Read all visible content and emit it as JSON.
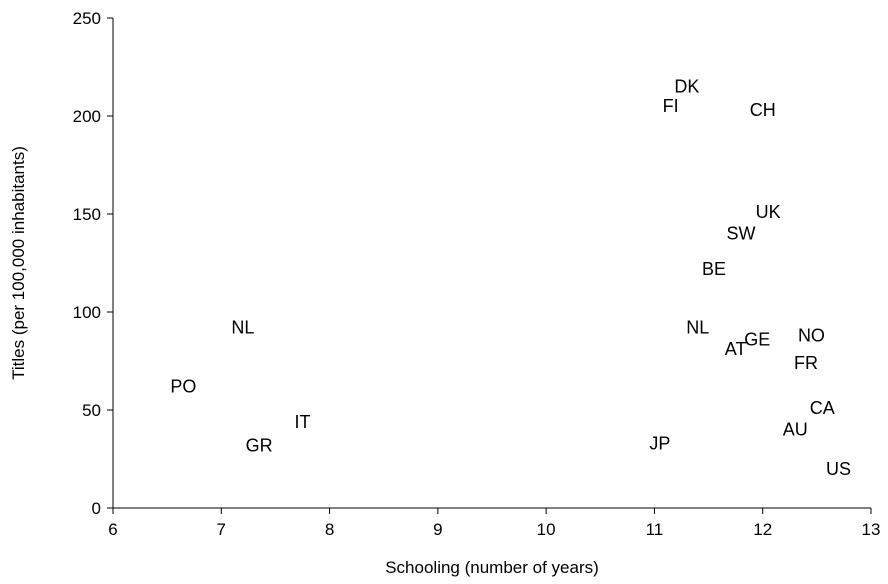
{
  "chart_data": {
    "type": "scatter",
    "title": "",
    "xlabel": "Schooling (number of years)",
    "ylabel": "Titles (per 100,000 inhabitants)",
    "xlim": [
      6,
      13
    ],
    "ylim": [
      0,
      250
    ],
    "xticks": [
      6,
      7,
      8,
      9,
      10,
      11,
      12,
      13
    ],
    "yticks": [
      0,
      50,
      100,
      150,
      200,
      250
    ],
    "grid": false,
    "marker": "country-code-text",
    "points": [
      {
        "label": "DK",
        "x": 11.3,
        "y": 215
      },
      {
        "label": "FI",
        "x": 11.15,
        "y": 205
      },
      {
        "label": "CH",
        "x": 12.0,
        "y": 203
      },
      {
        "label": "UK",
        "x": 12.05,
        "y": 151
      },
      {
        "label": "SW",
        "x": 11.8,
        "y": 140
      },
      {
        "label": "BE",
        "x": 11.55,
        "y": 122
      },
      {
        "label": "NL",
        "x": 7.2,
        "y": 92
      },
      {
        "label": "NL",
        "x": 11.4,
        "y": 92
      },
      {
        "label": "GE",
        "x": 11.95,
        "y": 86
      },
      {
        "label": "NO",
        "x": 12.45,
        "y": 88
      },
      {
        "label": "AT",
        "x": 11.75,
        "y": 81
      },
      {
        "label": "FR",
        "x": 12.4,
        "y": 74
      },
      {
        "label": "PO",
        "x": 6.65,
        "y": 62
      },
      {
        "label": "IT",
        "x": 7.75,
        "y": 44
      },
      {
        "label": "GR",
        "x": 7.35,
        "y": 32
      },
      {
        "label": "JP",
        "x": 11.05,
        "y": 33
      },
      {
        "label": "CA",
        "x": 12.55,
        "y": 51
      },
      {
        "label": "AU",
        "x": 12.3,
        "y": 40
      },
      {
        "label": "US",
        "x": 12.7,
        "y": 20
      }
    ]
  }
}
